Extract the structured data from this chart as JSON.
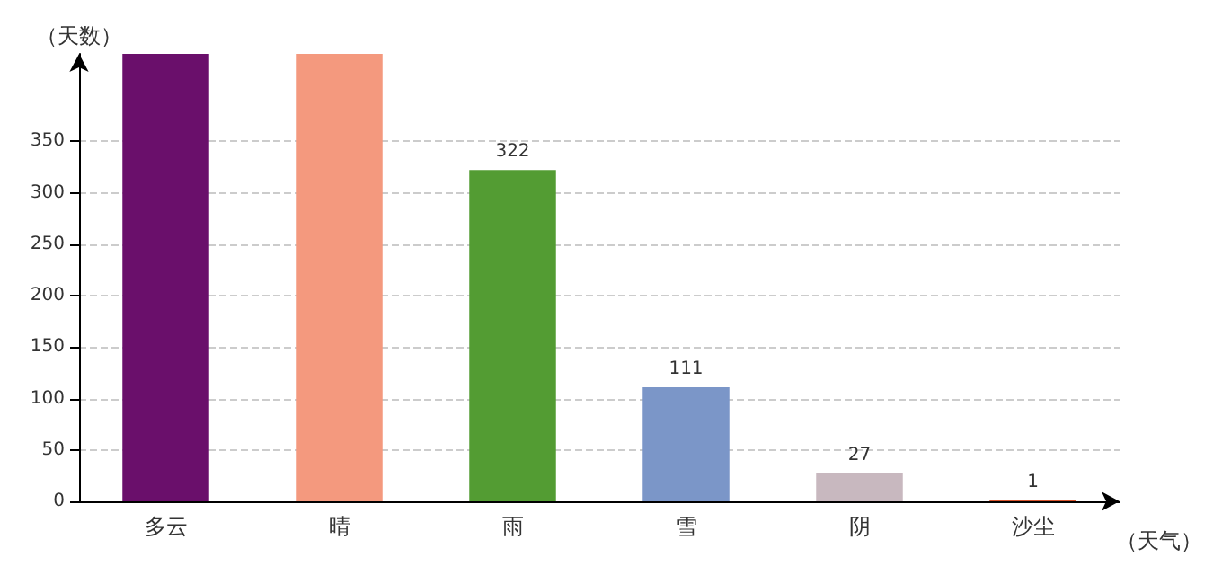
{
  "chart_data": {
    "type": "bar",
    "xlabel": "（天气）",
    "ylabel": "（天数）",
    "categories": [
      "多云",
      "晴",
      "雨",
      "雪",
      "阴",
      "沙尘"
    ],
    "values": [
      435,
      435,
      322,
      111,
      27,
      1
    ],
    "colors": [
      "#6a0f6b",
      "#f4997e",
      "#539c33",
      "#7b96c8",
      "#c8b8bf",
      "#d9542c"
    ],
    "value_labels": [
      null,
      null,
      "322",
      "111",
      "27",
      "1"
    ],
    "ylim": [
      0,
      435
    ],
    "yticks": [
      0,
      50,
      100,
      150,
      200,
      250,
      300,
      350
    ],
    "grid": "y"
  }
}
